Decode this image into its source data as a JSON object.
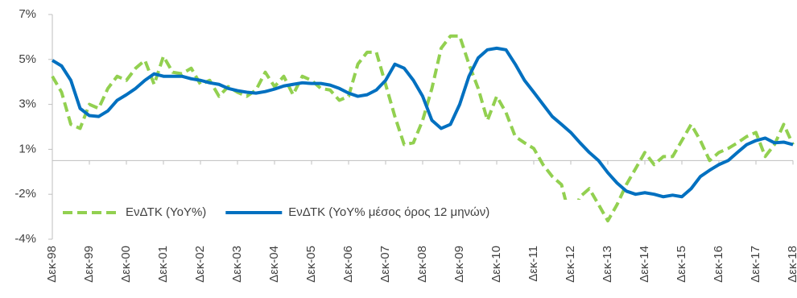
{
  "chart_data": {
    "type": "line",
    "x": [
      0,
      3,
      6,
      9,
      12,
      15,
      18,
      21,
      24,
      27,
      30,
      33,
      36,
      39,
      42,
      45,
      48,
      51,
      54,
      57,
      60,
      63,
      66,
      69,
      72,
      75,
      78,
      81,
      84,
      87,
      90,
      93,
      96,
      99,
      102,
      105,
      108,
      111,
      114,
      117,
      120,
      123,
      126,
      129,
      132,
      135,
      138,
      141,
      144,
      147,
      150,
      153,
      156,
      159,
      162,
      165,
      168,
      171,
      174,
      177,
      180,
      183,
      186,
      189,
      192,
      195,
      198,
      201,
      204,
      207,
      210,
      213,
      216,
      219,
      222,
      225,
      228,
      231,
      234,
      237,
      240
    ],
    "xlim": [
      0,
      240
    ],
    "xticks": [
      {
        "value": 0,
        "label": "Δεκ-98"
      },
      {
        "value": 12,
        "label": "Δεκ-99"
      },
      {
        "value": 24,
        "label": "Δεκ-00"
      },
      {
        "value": 36,
        "label": "Δεκ-01"
      },
      {
        "value": 48,
        "label": "Δεκ-02"
      },
      {
        "value": 60,
        "label": "Δεκ-03"
      },
      {
        "value": 72,
        "label": "Δεκ-04"
      },
      {
        "value": 84,
        "label": "Δεκ-05"
      },
      {
        "value": 96,
        "label": "Δεκ-06"
      },
      {
        "value": 108,
        "label": "Δεκ-07"
      },
      {
        "value": 120,
        "label": "Δεκ-08"
      },
      {
        "value": 132,
        "label": "Δεκ-09"
      },
      {
        "value": 144,
        "label": "Δεκ-10"
      },
      {
        "value": 156,
        "label": "Δεκ-11"
      },
      {
        "value": 168,
        "label": "Δεκ-12"
      },
      {
        "value": 180,
        "label": "Δεκ-13"
      },
      {
        "value": 192,
        "label": "Δεκ-14"
      },
      {
        "value": 204,
        "label": "Δεκ-15"
      },
      {
        "value": 216,
        "label": "Δεκ-16"
      },
      {
        "value": 228,
        "label": "Δεκ-17"
      },
      {
        "value": 240,
        "label": "Δεκ-18"
      }
    ],
    "ylim": [
      -3.5,
      6.5
    ],
    "yticks": [
      {
        "value": 6.5,
        "label": "7%"
      },
      {
        "value": 4.5,
        "label": "5%"
      },
      {
        "value": 2.5,
        "label": "3%"
      },
      {
        "value": 0.5,
        "label": "1%"
      },
      {
        "value": -1.5,
        "label": "-2%"
      },
      {
        "value": -3.5,
        "label": "-4%"
      }
    ],
    "legend": "lower left",
    "series": [
      {
        "name": "ΕνΔΤΚ (YoY%)",
        "color": "#92d050",
        "dashed": true,
        "values": [
          3.75,
          3.04,
          1.61,
          1.43,
          2.5,
          2.32,
          3.21,
          3.75,
          3.57,
          4.11,
          4.46,
          3.39,
          4.64,
          3.93,
          3.86,
          4.11,
          3.39,
          3.57,
          2.86,
          3.29,
          3.04,
          2.86,
          3.14,
          3.93,
          3.29,
          3.75,
          2.93,
          3.75,
          3.57,
          3.21,
          3.14,
          2.68,
          2.86,
          4.29,
          4.82,
          4.82,
          3.39,
          1.96,
          0.71,
          0.79,
          1.79,
          3.21,
          5.0,
          5.54,
          5.54,
          4.29,
          3.21,
          1.79,
          2.86,
          2.14,
          1.07,
          0.79,
          0.54,
          -0.18,
          -0.71,
          -1.07,
          -2.68,
          -1.61,
          -1.25,
          -1.96,
          -2.68,
          -1.96,
          -1.07,
          -0.36,
          0.36,
          -0.18,
          0.18,
          0.18,
          0.89,
          1.61,
          0.89,
          0,
          0.36,
          0.54,
          0.79,
          1.07,
          1.25,
          0.18,
          0.71,
          1.61,
          0.71
        ]
      },
      {
        "name": "ΕνΔΤΚ (YoY% μέσος όρος 12 μηνών)",
        "color": "#0070c0",
        "dashed": false,
        "values": [
          4.46,
          4.21,
          3.57,
          2.32,
          2.0,
          1.96,
          2.21,
          2.68,
          2.93,
          3.21,
          3.57,
          3.86,
          3.75,
          3.75,
          3.75,
          3.64,
          3.57,
          3.46,
          3.39,
          3.21,
          3.11,
          3.04,
          3.0,
          3.07,
          3.18,
          3.32,
          3.39,
          3.46,
          3.43,
          3.43,
          3.36,
          3.21,
          3.0,
          2.86,
          2.93,
          3.14,
          3.57,
          4.29,
          4.11,
          3.57,
          2.86,
          1.79,
          1.43,
          1.61,
          2.5,
          3.75,
          4.57,
          4.93,
          5.0,
          4.93,
          4.29,
          3.57,
          3.04,
          2.5,
          1.96,
          1.61,
          1.25,
          0.79,
          0.36,
          0,
          -0.54,
          -1.0,
          -1.36,
          -1.5,
          -1.43,
          -1.5,
          -1.61,
          -1.54,
          -1.61,
          -1.25,
          -0.71,
          -0.43,
          -0.18,
          0,
          0.36,
          0.71,
          0.89,
          1.0,
          0.79,
          0.82,
          0.71
        ]
      }
    ]
  }
}
